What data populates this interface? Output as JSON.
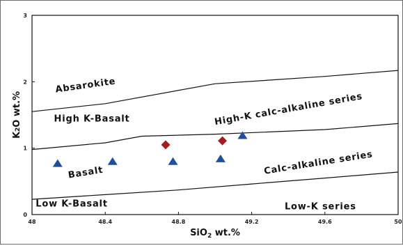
{
  "chart_data": {
    "type": "scatter",
    "xlabel": "SiO",
    "xlabel_sub": "2",
    "xlabel_unit": " wt.%",
    "ylabel": "K",
    "ylabel_sub": "2",
    "ylabel_unit": "O wt.%",
    "xlim": [
      48,
      50
    ],
    "ylim": [
      0,
      3
    ],
    "xticks": [
      "48",
      "48.4",
      "48.8",
      "49.2",
      "49.6",
      "50"
    ],
    "yticks": [
      "0",
      "1",
      "2",
      "3"
    ],
    "grid": false,
    "boundaries": [
      {
        "name": "basalt-lowk",
        "points": [
          [
            48,
            0.23
          ],
          [
            48.4,
            0.3
          ],
          [
            48.8,
            0.37
          ],
          [
            49.2,
            0.46
          ],
          [
            49.6,
            0.55
          ],
          [
            50,
            0.64
          ]
        ]
      },
      {
        "name": "highk-basalt",
        "points": [
          [
            48,
            0.98
          ],
          [
            48.4,
            1.08
          ],
          [
            48.6,
            1.18
          ],
          [
            49.0,
            1.21
          ],
          [
            49.6,
            1.28
          ],
          [
            50,
            1.37
          ]
        ]
      },
      {
        "name": "absarokite-highk",
        "points": [
          [
            48,
            1.55
          ],
          [
            48.4,
            1.67
          ],
          [
            49.0,
            1.97
          ],
          [
            49.6,
            2.08
          ],
          [
            50,
            2.17
          ]
        ]
      }
    ],
    "field_labels": [
      {
        "text": "Absarokite",
        "x": 48.13,
        "y": 1.84,
        "angle": -8
      },
      {
        "text": "High K-Basalt",
        "x": 48.12,
        "y": 1.4,
        "angle": 0
      },
      {
        "text": "Basalt",
        "x": 48.2,
        "y": 0.55,
        "angle": -9
      },
      {
        "text": "Low K-Basalt",
        "x": 48.02,
        "y": 0.12,
        "angle": 0
      },
      {
        "text": "High-K calc-alkaline series",
        "x": 49.0,
        "y": 1.35,
        "angle": -10
      },
      {
        "text": "Calc-alkaline series",
        "x": 49.27,
        "y": 0.61,
        "angle": -9
      },
      {
        "text": "Low-K series",
        "x": 49.38,
        "y": 0.08,
        "angle": 0
      }
    ],
    "series": [
      {
        "marker": "triangle",
        "color": "#1f4e9a",
        "points": [
          [
            48.14,
            0.77
          ],
          [
            48.44,
            0.8
          ],
          [
            48.77,
            0.8
          ],
          [
            49.03,
            0.84
          ],
          [
            49.15,
            1.19
          ]
        ]
      },
      {
        "marker": "diamond",
        "color": "#a31c22",
        "points": [
          [
            48.73,
            1.05
          ],
          [
            49.04,
            1.11
          ]
        ]
      }
    ]
  }
}
